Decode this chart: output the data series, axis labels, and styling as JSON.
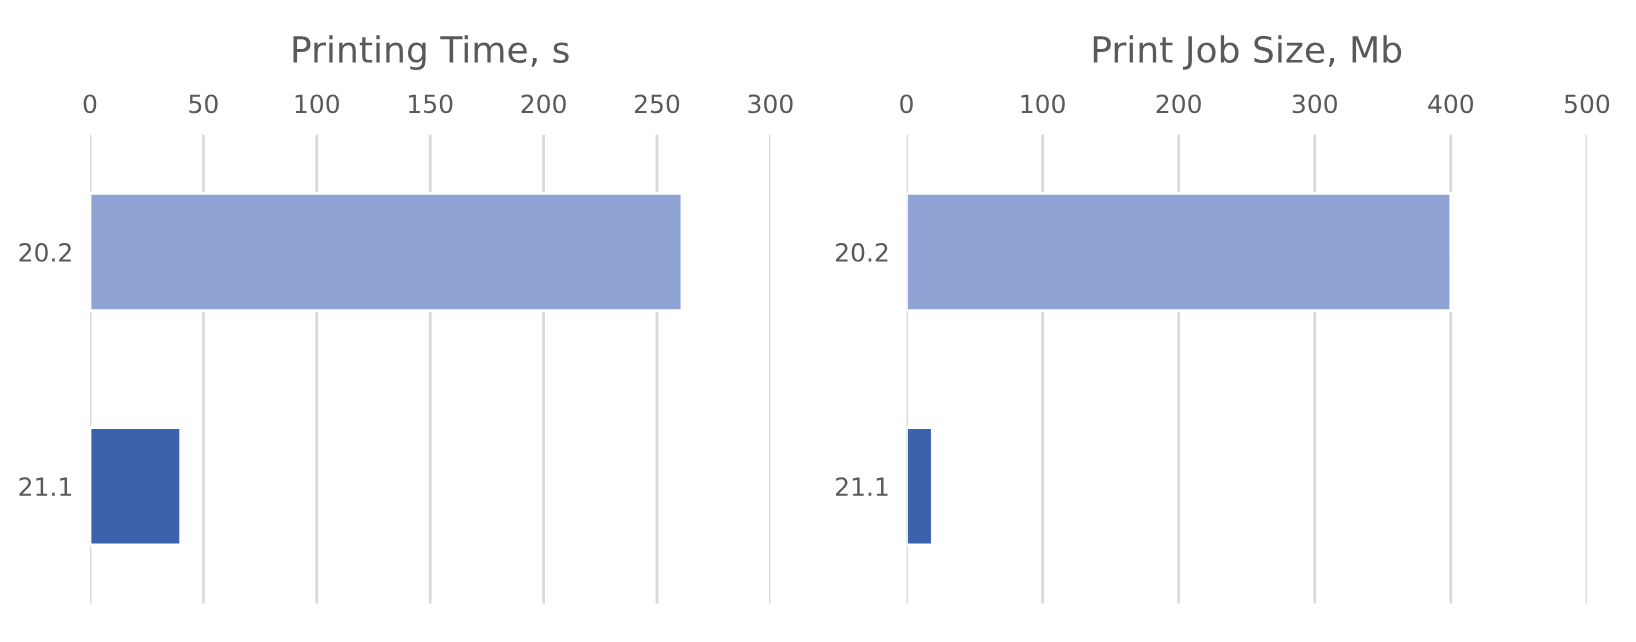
{
  "chart_data": [
    {
      "type": "bar",
      "orientation": "horizontal",
      "title": "Printing Time, s",
      "categories": [
        "20.2",
        "21.1"
      ],
      "values": [
        261,
        40
      ],
      "colors": [
        "#8fa3d5",
        "#3b62ab"
      ],
      "xlim": [
        0,
        300
      ],
      "xticks": [
        0,
        50,
        100,
        150,
        200,
        250,
        300
      ],
      "grid": "x"
    },
    {
      "type": "bar",
      "orientation": "horizontal",
      "title": "Print Job Size, Mb",
      "categories": [
        "20.2",
        "21.1"
      ],
      "values": [
        400,
        19
      ],
      "colors": [
        "#8fa3d5",
        "#3b62ab"
      ],
      "xlim": [
        0,
        500
      ],
      "xticks": [
        0,
        100,
        200,
        300,
        400,
        500
      ],
      "grid": "x"
    }
  ]
}
